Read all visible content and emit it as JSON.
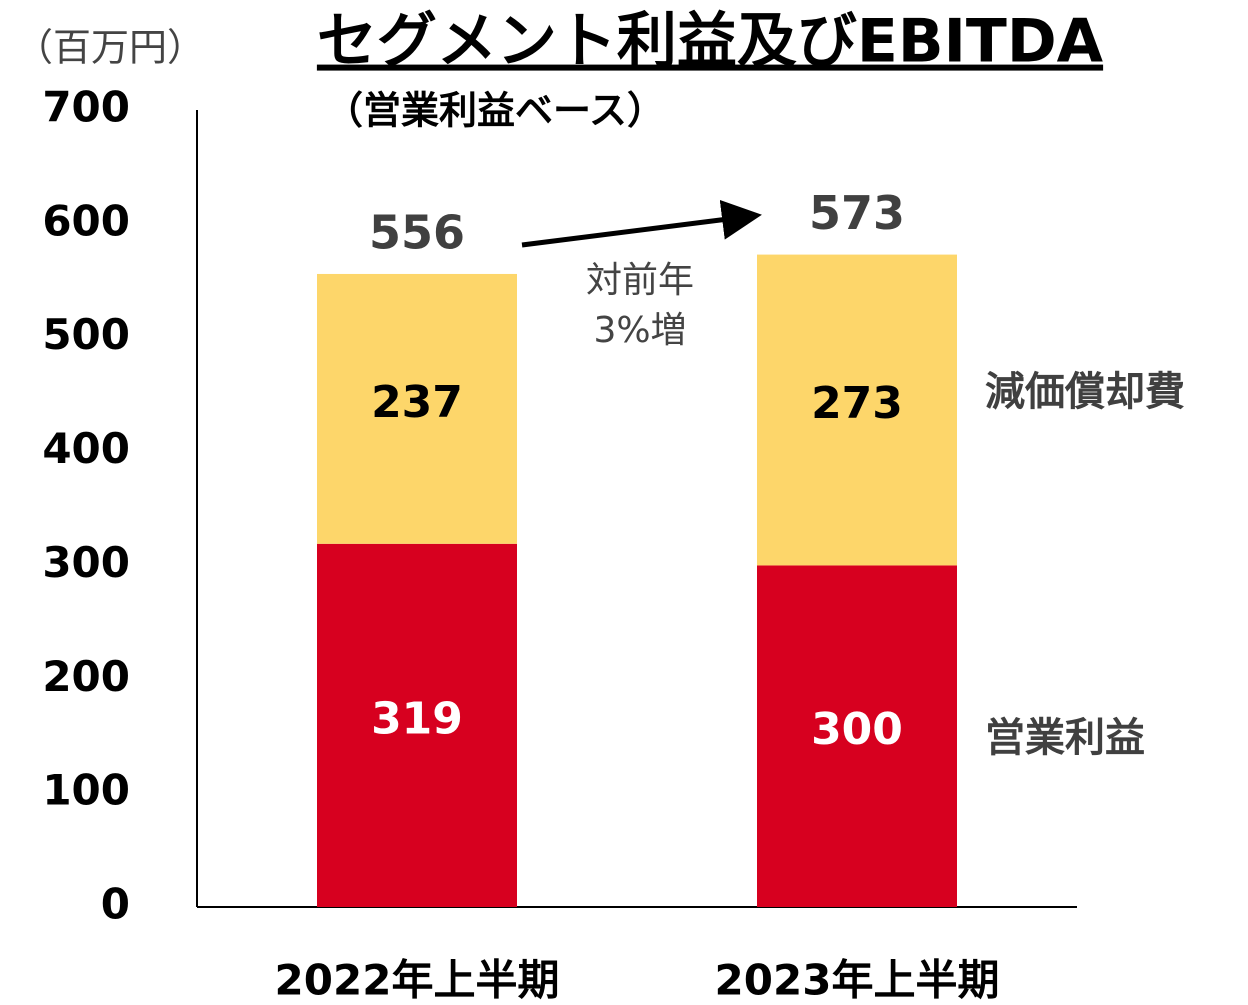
{
  "chart_data": {
    "type": "stacked_bar",
    "title": "セグメント利益及びEBITDA",
    "subtitle": "（営業利益ベース）",
    "unit_label": "（百万円）",
    "categories": [
      "2022年上半期",
      "2023年上半期"
    ],
    "series": [
      {
        "name": "営業利益",
        "color": "#d7001f",
        "label_color": "#ffffff",
        "values": [
          319,
          300
        ]
      },
      {
        "name": "減価償却費",
        "color": "#fdd66a",
        "label_color": "#000000",
        "values": [
          237,
          273
        ]
      }
    ],
    "totals": [
      556,
      573
    ],
    "annotation": [
      "対前年",
      "3%増"
    ],
    "ylim": [
      0,
      700
    ],
    "yticks": [
      0,
      100,
      200,
      300,
      400,
      500,
      600,
      700
    ],
    "grid": false
  }
}
